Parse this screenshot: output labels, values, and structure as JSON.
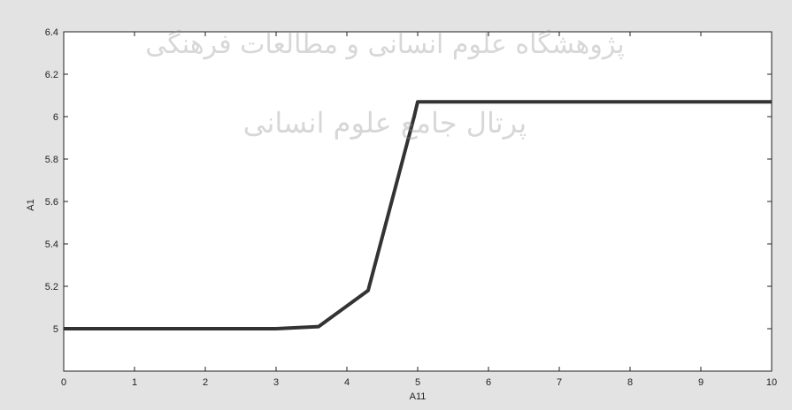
{
  "chart_data": {
    "type": "line",
    "title": "",
    "xlabel": "A11",
    "ylabel": "A1",
    "xlim": [
      0,
      10
    ],
    "ylim": [
      4.8,
      6.4
    ],
    "xticks": [
      0,
      1,
      2,
      3,
      4,
      5,
      6,
      7,
      8,
      9,
      10
    ],
    "yticks": [
      5,
      5.2,
      5.4,
      5.6,
      5.8,
      6,
      6.2,
      6.4
    ],
    "xtick_labels": [
      "0",
      "1",
      "2",
      "3",
      "4",
      "5",
      "6",
      "7",
      "8",
      "9",
      "10"
    ],
    "ytick_labels": [
      "5",
      "5.2",
      "5.4",
      "5.6",
      "5.8",
      "6",
      "6.2",
      "6.4"
    ],
    "grid": false,
    "legend": "none",
    "series": [
      {
        "color": "#333333",
        "x": [
          0,
          3.0,
          3.6,
          4.3,
          4.95,
          5.0,
          10
        ],
        "y": [
          5.0,
          5.0,
          5.01,
          5.18,
          6.0,
          6.07,
          6.07
        ]
      }
    ]
  },
  "watermark": {
    "line1": "پژوهشگاه علوم انسانی و مطالعات فرهنگی",
    "line2": "پرتال جامع علوم انسانی"
  }
}
